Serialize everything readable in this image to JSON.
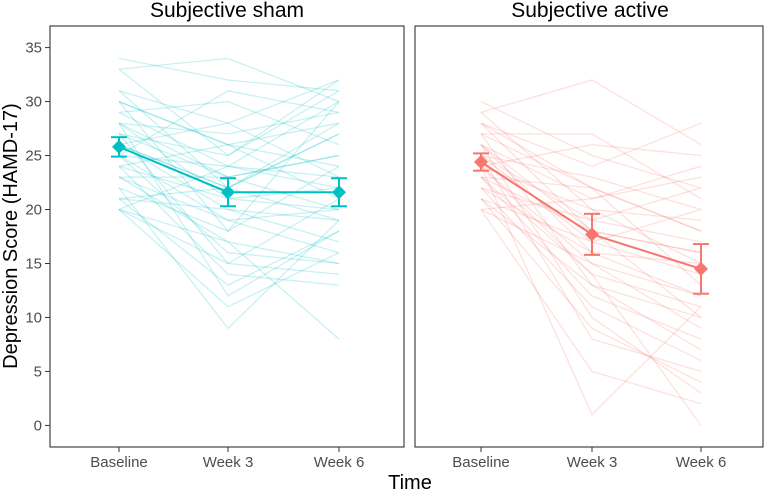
{
  "chart_data": {
    "type": "line",
    "x_label": "Time",
    "y_label": "Depression Score (HAMD-17)",
    "categories": [
      "Baseline",
      "Week 3",
      "Week 6"
    ],
    "ylim": [
      -2,
      37
    ],
    "y_ticks": [
      0,
      5,
      10,
      15,
      20,
      25,
      30,
      35
    ],
    "panels": [
      {
        "title": "Subjective sham",
        "color": "#00BFC4",
        "mean": [
          25.8,
          21.6,
          21.6
        ],
        "error_low": [
          24.9,
          20.3,
          20.3
        ],
        "error_high": [
          26.7,
          22.9,
          22.9
        ],
        "individuals": [
          [
            34,
            32,
            31
          ],
          [
            33,
            34,
            30
          ],
          [
            33,
            25,
            32
          ],
          [
            31,
            22,
            27
          ],
          [
            31,
            28,
            32
          ],
          [
            30,
            26,
            24
          ],
          [
            30,
            18,
            30
          ],
          [
            29,
            30,
            26
          ],
          [
            29,
            24,
            22
          ],
          [
            28,
            21,
            20
          ],
          [
            28,
            27,
            29
          ],
          [
            28,
            12,
            18
          ],
          [
            27,
            23,
            25
          ],
          [
            27,
            15,
            14
          ],
          [
            27,
            25,
            31
          ],
          [
            26,
            20,
            17
          ],
          [
            26,
            28,
            23
          ],
          [
            26,
            22,
            27
          ],
          [
            25,
            19,
            20
          ],
          [
            25,
            24,
            30
          ],
          [
            25,
            16,
            15
          ],
          [
            25,
            31,
            29
          ],
          [
            24,
            21,
            22
          ],
          [
            24,
            14,
            13
          ],
          [
            24,
            26,
            21
          ],
          [
            23,
            17,
            8
          ],
          [
            23,
            23,
            25
          ],
          [
            23,
            19,
            16
          ],
          [
            22,
            18,
            24
          ],
          [
            22,
            9,
            19
          ],
          [
            21,
            20,
            19
          ],
          [
            21,
            13,
            18
          ],
          [
            21,
            22,
            28
          ],
          [
            20,
            15,
            21
          ],
          [
            20,
            11,
            16
          ],
          [
            20,
            17,
            15
          ],
          [
            20,
            24,
            23
          ],
          [
            28,
            23,
            20
          ],
          [
            30,
            26,
            28
          ],
          [
            26,
            22,
            19
          ]
        ]
      },
      {
        "title": "Subjective active",
        "color": "#F8766D",
        "mean": [
          24.4,
          17.7,
          14.5
        ],
        "error_low": [
          23.6,
          15.8,
          12.2
        ],
        "error_high": [
          25.2,
          19.6,
          16.8
        ],
        "individuals": [
          [
            30,
            25,
            22
          ],
          [
            29,
            20,
            15
          ],
          [
            29,
            32,
            26
          ],
          [
            28,
            18,
            10
          ],
          [
            28,
            24,
            28
          ],
          [
            27,
            13,
            7
          ],
          [
            27,
            22,
            18
          ],
          [
            27,
            27,
            21
          ],
          [
            26,
            16,
            12
          ],
          [
            26,
            21,
            24
          ],
          [
            26,
            10,
            3
          ],
          [
            25,
            19,
            17
          ],
          [
            25,
            23,
            20
          ],
          [
            25,
            8,
            5
          ],
          [
            25,
            17,
            14
          ],
          [
            24,
            15,
            9
          ],
          [
            24,
            1,
            11
          ],
          [
            24,
            20,
            19
          ],
          [
            24,
            26,
            25
          ],
          [
            23,
            12,
            8
          ],
          [
            23,
            18,
            16
          ],
          [
            23,
            14,
            0
          ],
          [
            23,
            22,
            13
          ],
          [
            22,
            11,
            6
          ],
          [
            22,
            19,
            22
          ],
          [
            22,
            16,
            15
          ],
          [
            21,
            9,
            4
          ],
          [
            21,
            17,
            20
          ],
          [
            21,
            13,
            10
          ],
          [
            20,
            5,
            2
          ],
          [
            20,
            15,
            12
          ],
          [
            20,
            21,
            23
          ],
          [
            26,
            18,
            16
          ],
          [
            24,
            14,
            11
          ],
          [
            28,
            22,
            18
          ]
        ]
      }
    ]
  }
}
